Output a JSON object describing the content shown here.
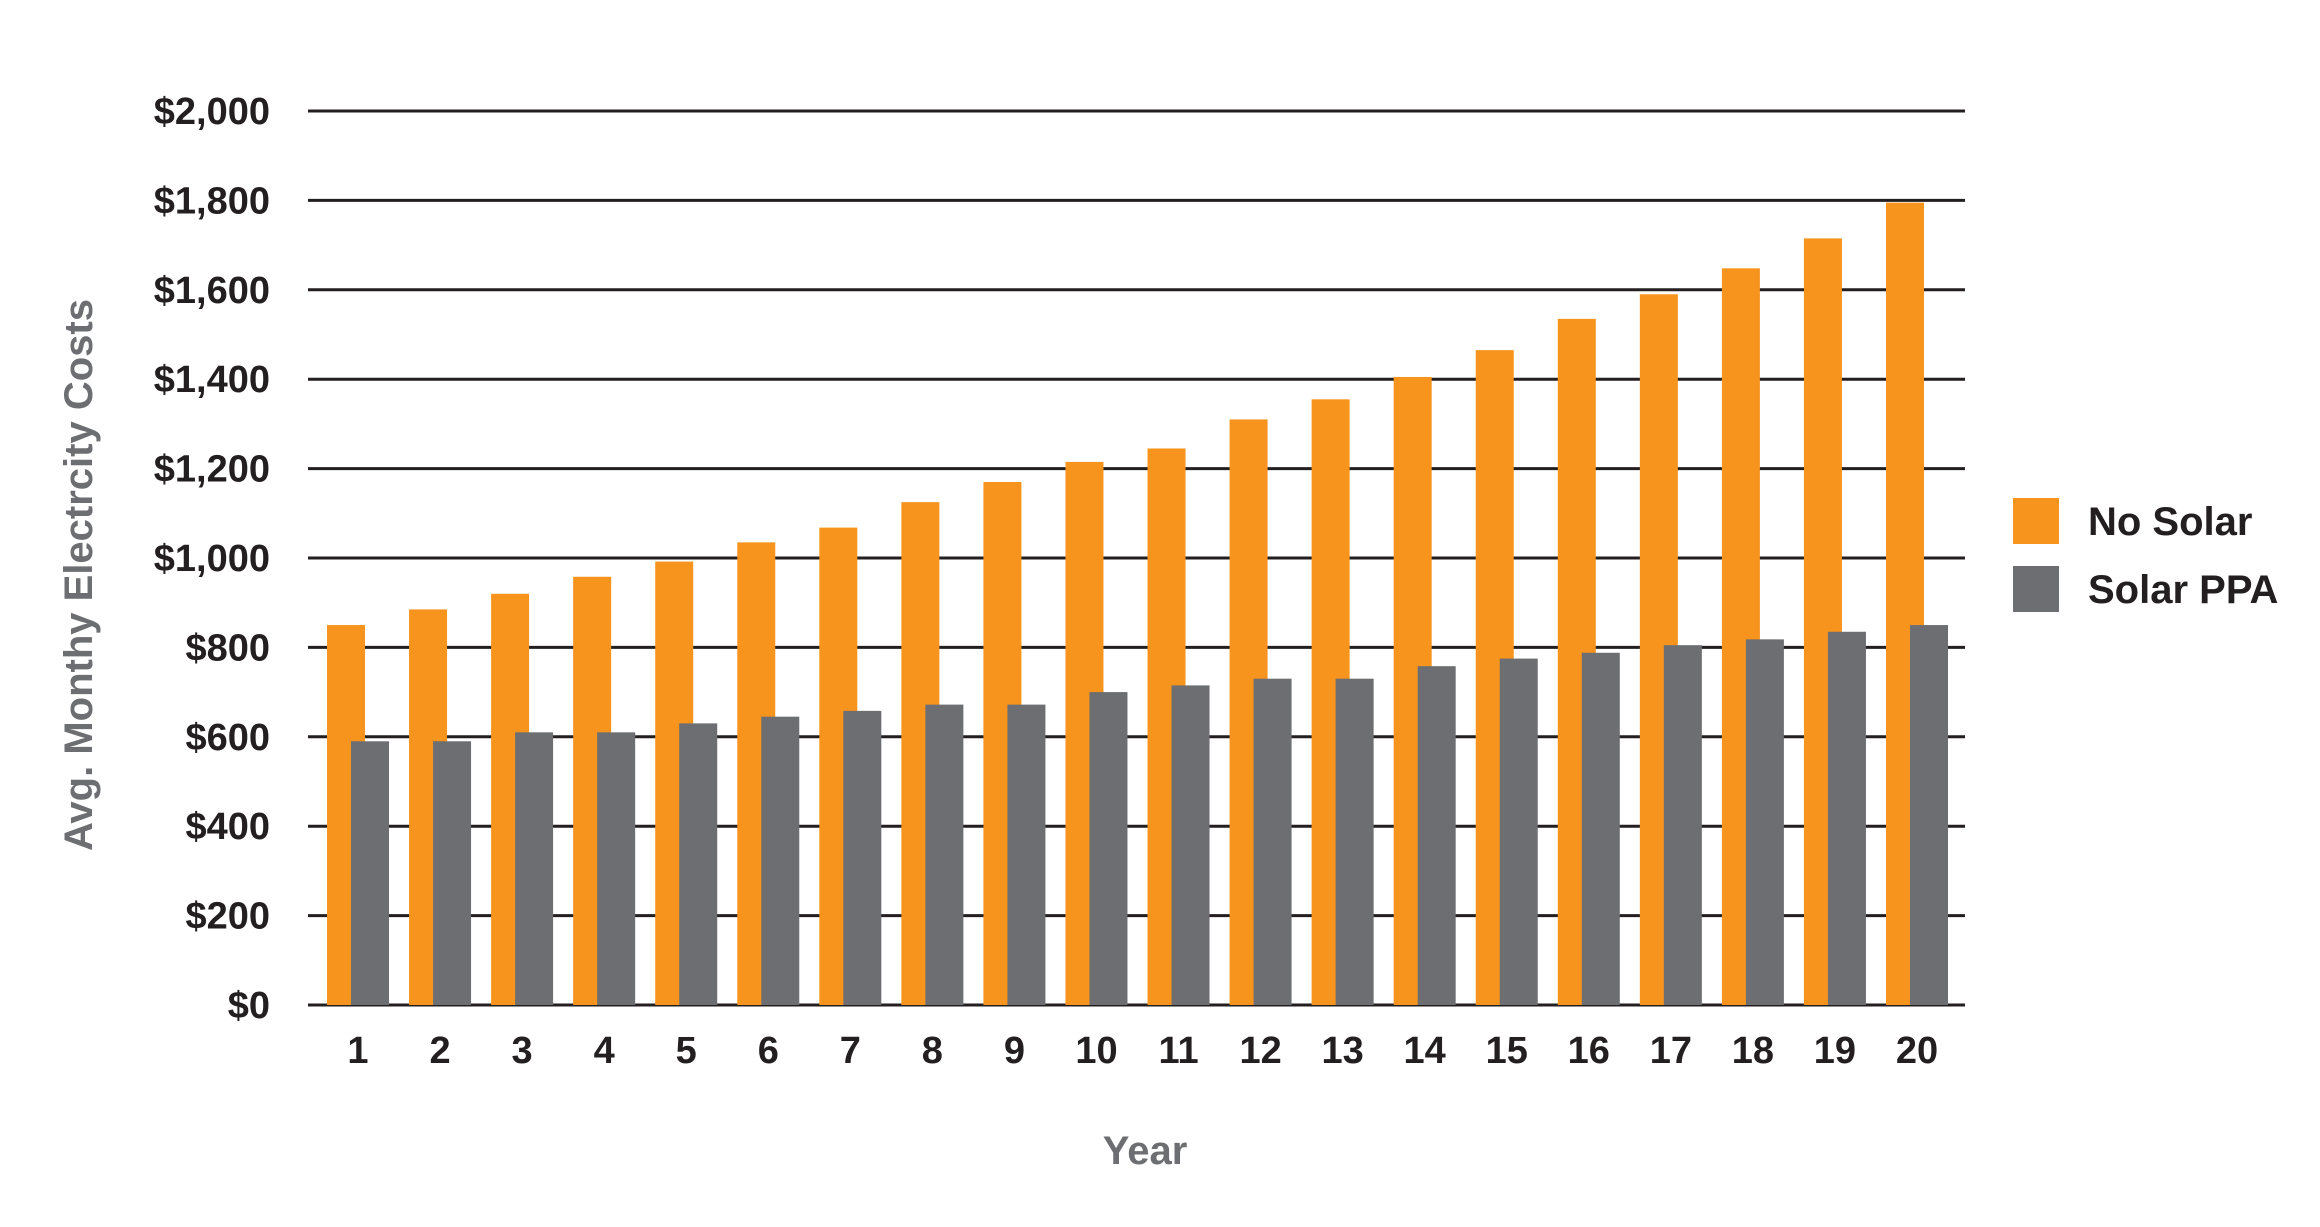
{
  "chart_data": {
    "type": "bar",
    "title": "",
    "xlabel": "Year",
    "ylabel": "Avg. Monthy Electrcity Costs",
    "categories": [
      "1",
      "2",
      "3",
      "4",
      "5",
      "6",
      "7",
      "8",
      "9",
      "10",
      "11",
      "12",
      "13",
      "14",
      "15",
      "16",
      "17",
      "18",
      "19",
      "20"
    ],
    "series": [
      {
        "name": "No Solar",
        "color": "#f7941d",
        "values": [
          850,
          885,
          920,
          958,
          992,
          1035,
          1068,
          1125,
          1170,
          1215,
          1245,
          1310,
          1355,
          1405,
          1465,
          1535,
          1590,
          1648,
          1715,
          1795
        ]
      },
      {
        "name": "Solar PPA",
        "color": "#6d6e71",
        "values": [
          590,
          590,
          610,
          610,
          630,
          645,
          658,
          672,
          672,
          700,
          715,
          730,
          730,
          758,
          775,
          788,
          805,
          818,
          835,
          850
        ]
      }
    ],
    "ylim": [
      0,
      2000
    ],
    "yticks": [
      0,
      200,
      400,
      600,
      800,
      1000,
      1200,
      1400,
      1600,
      1800,
      2000
    ],
    "ytick_labels": [
      "$0",
      "$200",
      "$400",
      "$600",
      "$800",
      "$1,000",
      "$1,200",
      "$1,400",
      "$1,600",
      "$1,800",
      "$2,000"
    ],
    "grid": true,
    "legend_position": "right",
    "gridline_color": "#231f20",
    "xlabel_color": "#6d6e71",
    "ylabel_color": "#6d6e71"
  }
}
